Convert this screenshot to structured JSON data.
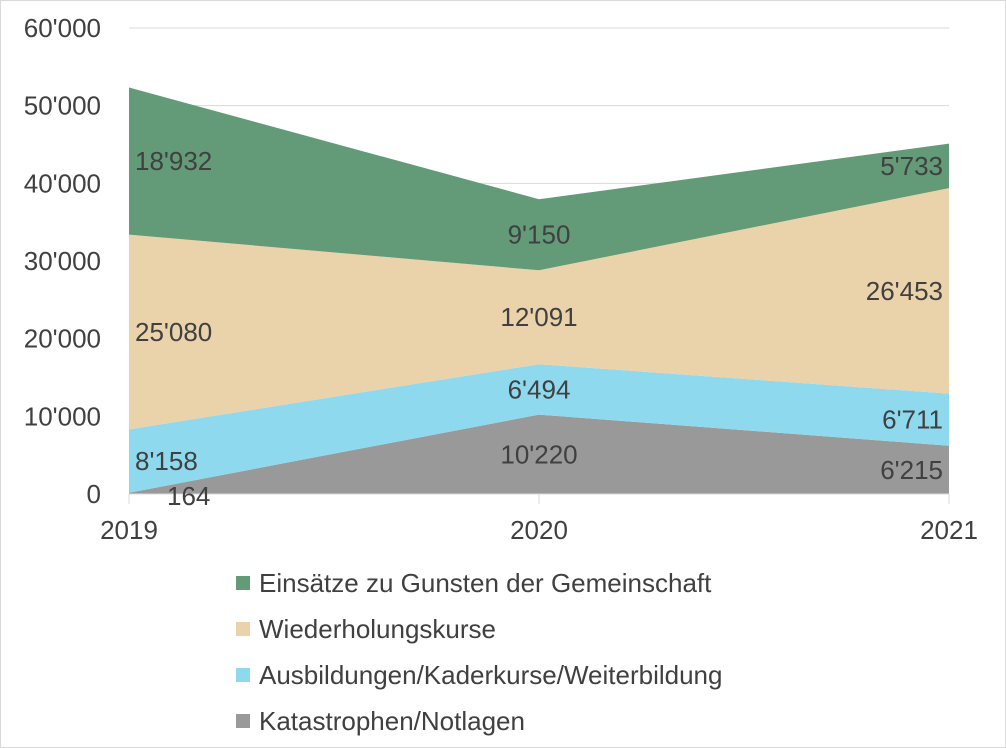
{
  "chart_data": {
    "type": "area",
    "stacked": true,
    "categories": [
      "2019",
      "2020",
      "2021"
    ],
    "ylim": [
      0,
      60000
    ],
    "y_ticks": [
      0,
      10000,
      20000,
      30000,
      40000,
      50000,
      60000
    ],
    "y_tick_labels": [
      "0",
      "10'000",
      "20'000",
      "30'000",
      "40'000",
      "50'000",
      "60'000"
    ],
    "grid": true,
    "legend_position": "bottom",
    "series": [
      {
        "name": "Katastrophen/Notlagen",
        "color": "#999999",
        "values": [
          164,
          10220,
          6215
        ],
        "labels": [
          "164",
          "10'220",
          "6'215"
        ]
      },
      {
        "name": "Ausbildungen/Kaderkurse/Weiterbildung",
        "color": "#8fd9ef",
        "values": [
          8158,
          6494,
          6711
        ],
        "labels": [
          "8'158",
          "6'494",
          "6'711"
        ]
      },
      {
        "name": "Wiederholungskurse",
        "color": "#ead2ab",
        "values": [
          25080,
          12091,
          26453
        ],
        "labels": [
          "25'080",
          "12'091",
          "26'453"
        ]
      },
      {
        "name": "Einsätze zu Gunsten der Gemeinschaft",
        "color": "#639a78",
        "values": [
          18932,
          9150,
          5733
        ],
        "labels": [
          "18'932",
          "9'150",
          "5'733"
        ]
      }
    ]
  }
}
